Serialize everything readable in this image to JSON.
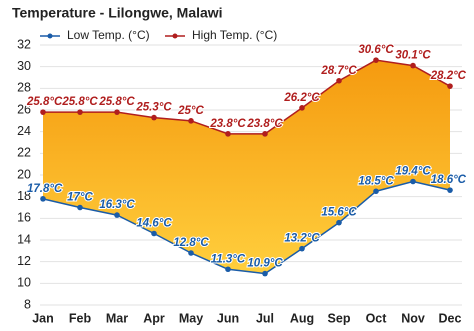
{
  "chart_data": {
    "type": "line",
    "title": "Temperature - Lilongwe, Malawi",
    "categories": [
      "Jan",
      "Feb",
      "Mar",
      "Apr",
      "May",
      "Jun",
      "Jul",
      "Aug",
      "Sep",
      "Oct",
      "Nov",
      "Dec"
    ],
    "series": [
      {
        "name": "Low Temp. (°C)",
        "color": "#1a5ca8",
        "values": [
          17.8,
          17,
          16.3,
          14.6,
          12.8,
          11.3,
          10.9,
          13.2,
          15.6,
          18.5,
          19.4,
          18.6
        ],
        "value_labels": [
          "17.8°C",
          "17°C",
          "16.3°C",
          "14.6°C",
          "12.8°C",
          "11.3°C",
          "10.9°C",
          "13.2°C",
          "15.6°C",
          "18.5°C",
          "19.4°C",
          "18.6°C"
        ]
      },
      {
        "name": "High Temp. (°C)",
        "color": "#b01e1e",
        "values": [
          25.8,
          25.8,
          25.8,
          25.3,
          25,
          23.8,
          23.8,
          26.2,
          28.7,
          30.6,
          30.1,
          28.2
        ],
        "value_labels": [
          "25.8°C",
          "25.8°C",
          "25.8°C",
          "25.3°C",
          "25°C",
          "23.8°C",
          "23.8°C",
          "26.2°C",
          "28.7°C",
          "30.6°C",
          "30.1°C",
          "28.2°C"
        ]
      }
    ],
    "ylim": [
      8,
      32
    ],
    "yticks": [
      8,
      10,
      12,
      14,
      16,
      18,
      20,
      22,
      24,
      26,
      28,
      30,
      32
    ],
    "grid": true
  }
}
